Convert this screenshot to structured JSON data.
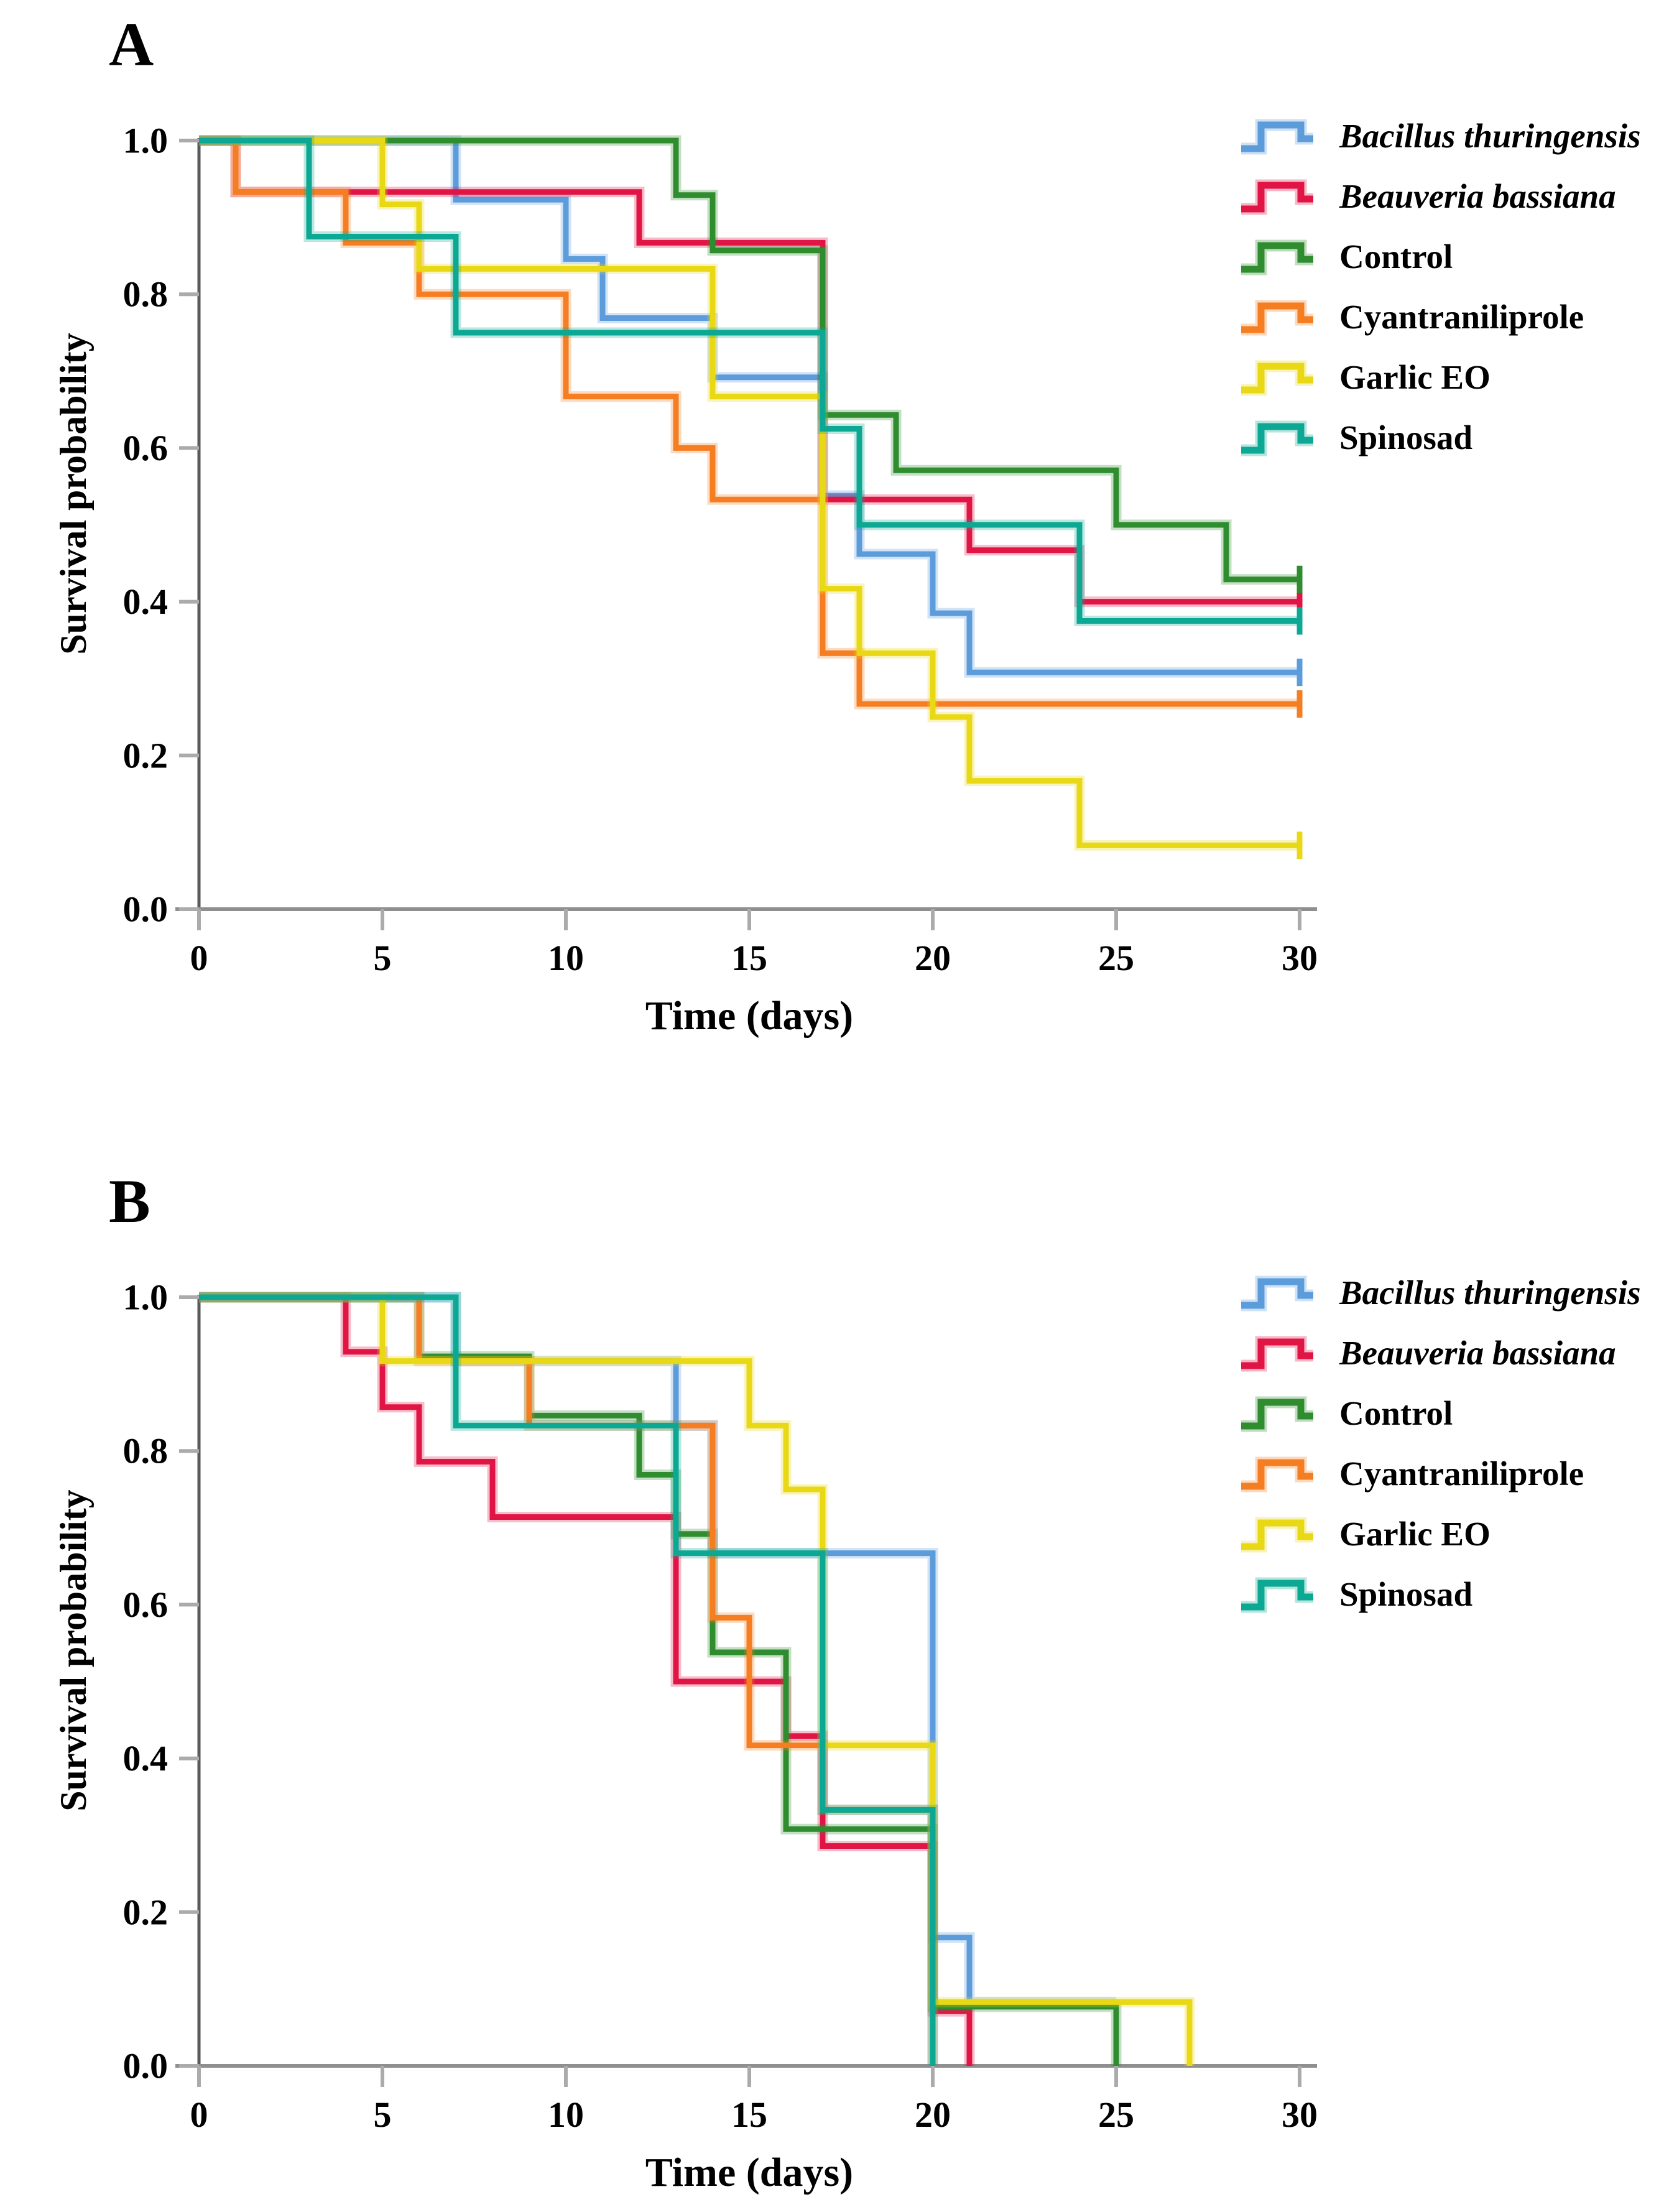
{
  "panels": [
    {
      "label": "A",
      "ylabel": "Survival probability",
      "xlabel": "Time (days)"
    },
    {
      "label": "B",
      "ylabel": "Survival probability",
      "xlabel": "Time (days)"
    }
  ],
  "axis": {
    "yticks": [
      "1.0",
      "0.8",
      "0.6",
      "0.4",
      "0.2",
      "0.0"
    ],
    "xticks": [
      "0",
      "5",
      "10",
      "15",
      "20",
      "25",
      "30"
    ]
  },
  "legend": {
    "items": [
      {
        "key": "bt",
        "label": "Bacillus thuringensis",
        "italic": true,
        "color": "#5C9CDB"
      },
      {
        "key": "bb",
        "label": "Beauveria bassiana",
        "italic": true,
        "color": "#E01545"
      },
      {
        "key": "ctrl",
        "label": "Control",
        "italic": false,
        "color": "#2F8C2F"
      },
      {
        "key": "cyan",
        "label": "Cyantraniliprole",
        "italic": false,
        "color": "#F57E22"
      },
      {
        "key": "garlic",
        "label": "Garlic EO",
        "italic": false,
        "color": "#E8D816"
      },
      {
        "key": "spin",
        "label": "Spinosad",
        "italic": false,
        "color": "#0CA893"
      }
    ]
  },
  "chart_data": [
    {
      "type": "line",
      "subtype": "kaplan-meier-step",
      "panel": "A",
      "xlabel": "Time (days)",
      "ylabel": "Survival probability",
      "xlim": [
        0,
        30
      ],
      "ylim": [
        0.0,
        1.0
      ],
      "grid": false,
      "legend_position": "outside-top-right",
      "end_tick_at_30": true,
      "series": [
        {
          "name": "Bacillus thuringensis",
          "key": "bt",
          "color": "#5C9CDB",
          "points": [
            [
              0,
              1.0
            ],
            [
              7,
              0.923
            ],
            [
              10,
              0.846
            ],
            [
              11,
              0.769
            ],
            [
              14,
              0.692
            ],
            [
              17,
              0.538
            ],
            [
              18,
              0.462
            ],
            [
              20,
              0.385
            ],
            [
              21,
              0.308
            ],
            [
              30,
              0.308
            ]
          ]
        },
        {
          "name": "Beauveria bassiana",
          "key": "bb",
          "color": "#E01545",
          "points": [
            [
              0,
              1.0
            ],
            [
              1,
              0.933
            ],
            [
              12,
              0.867
            ],
            [
              17,
              0.533
            ],
            [
              21,
              0.467
            ],
            [
              24,
              0.4
            ],
            [
              30,
              0.4
            ]
          ]
        },
        {
          "name": "Control",
          "key": "ctrl",
          "color": "#2F8C2F",
          "points": [
            [
              0,
              1.0
            ],
            [
              13,
              0.929
            ],
            [
              14,
              0.857
            ],
            [
              17,
              0.643
            ],
            [
              19,
              0.571
            ],
            [
              25,
              0.5
            ],
            [
              28,
              0.429
            ],
            [
              30,
              0.429
            ]
          ]
        },
        {
          "name": "Cyantraniliprole",
          "key": "cyan",
          "color": "#F57E22",
          "points": [
            [
              0,
              1.0
            ],
            [
              1,
              0.933
            ],
            [
              4,
              0.867
            ],
            [
              6,
              0.8
            ],
            [
              10,
              0.667
            ],
            [
              13,
              0.6
            ],
            [
              14,
              0.533
            ],
            [
              17,
              0.333
            ],
            [
              18,
              0.267
            ],
            [
              30,
              0.267
            ]
          ]
        },
        {
          "name": "Garlic EO",
          "key": "garlic",
          "color": "#E8D816",
          "points": [
            [
              0,
              1.0
            ],
            [
              5,
              0.917
            ],
            [
              6,
              0.833
            ],
            [
              14,
              0.667
            ],
            [
              17,
              0.417
            ],
            [
              18,
              0.333
            ],
            [
              20,
              0.25
            ],
            [
              21,
              0.167
            ],
            [
              24,
              0.083
            ],
            [
              30,
              0.083
            ]
          ]
        },
        {
          "name": "Spinosad",
          "key": "spin",
          "color": "#0CA893",
          "points": [
            [
              0,
              1.0
            ],
            [
              3,
              0.875
            ],
            [
              7,
              0.75
            ],
            [
              17,
              0.625
            ],
            [
              18,
              0.5
            ],
            [
              24,
              0.375
            ],
            [
              30,
              0.375
            ]
          ]
        }
      ]
    },
    {
      "type": "line",
      "subtype": "kaplan-meier-step",
      "panel": "B",
      "xlabel": "Time (days)",
      "ylabel": "Survival probability",
      "xlim": [
        0,
        30
      ],
      "ylim": [
        0.0,
        1.0
      ],
      "grid": false,
      "legend_position": "outside-top-right",
      "end_tick_at_30": false,
      "series": [
        {
          "name": "Bacillus thuringensis",
          "key": "bt",
          "color": "#5C9CDB",
          "points": [
            [
              0,
              1.0
            ],
            [
              7,
              0.917
            ],
            [
              13,
              0.833
            ],
            [
              14,
              0.667
            ],
            [
              20,
              0.167
            ],
            [
              21,
              0.083
            ],
            [
              25,
              0.083
            ]
          ]
        },
        {
          "name": "Beauveria bassiana",
          "key": "bb",
          "color": "#E01545",
          "points": [
            [
              0,
              1.0
            ],
            [
              4,
              0.929
            ],
            [
              5,
              0.857
            ],
            [
              6,
              0.786
            ],
            [
              8,
              0.714
            ],
            [
              13,
              0.5
            ],
            [
              16,
              0.429
            ],
            [
              17,
              0.286
            ],
            [
              20,
              0.071
            ],
            [
              21,
              0.0
            ]
          ]
        },
        {
          "name": "Control",
          "key": "ctrl",
          "color": "#2F8C2F",
          "points": [
            [
              0,
              1.0
            ],
            [
              6,
              0.923
            ],
            [
              9,
              0.846
            ],
            [
              12,
              0.769
            ],
            [
              13,
              0.692
            ],
            [
              14,
              0.538
            ],
            [
              16,
              0.308
            ],
            [
              20,
              0.077
            ],
            [
              25,
              0.0
            ]
          ]
        },
        {
          "name": "Cyantraniliprole",
          "key": "cyan",
          "color": "#F57E22",
          "points": [
            [
              0,
              1.0
            ],
            [
              6,
              0.917
            ],
            [
              9,
              0.833
            ],
            [
              14,
              0.583
            ],
            [
              15,
              0.417
            ],
            [
              17,
              0.333
            ],
            [
              20,
              0.0
            ]
          ]
        },
        {
          "name": "Garlic EO",
          "key": "garlic",
          "color": "#E8D816",
          "points": [
            [
              0,
              1.0
            ],
            [
              5,
              0.917
            ],
            [
              15,
              0.833
            ],
            [
              16,
              0.75
            ],
            [
              17,
              0.417
            ],
            [
              20,
              0.083
            ],
            [
              27,
              0.0
            ]
          ]
        },
        {
          "name": "Spinosad",
          "key": "spin",
          "color": "#0CA893",
          "points": [
            [
              0,
              1.0
            ],
            [
              7,
              0.833
            ],
            [
              13,
              0.667
            ],
            [
              17,
              0.333
            ],
            [
              20,
              0.0
            ]
          ]
        }
      ]
    }
  ]
}
